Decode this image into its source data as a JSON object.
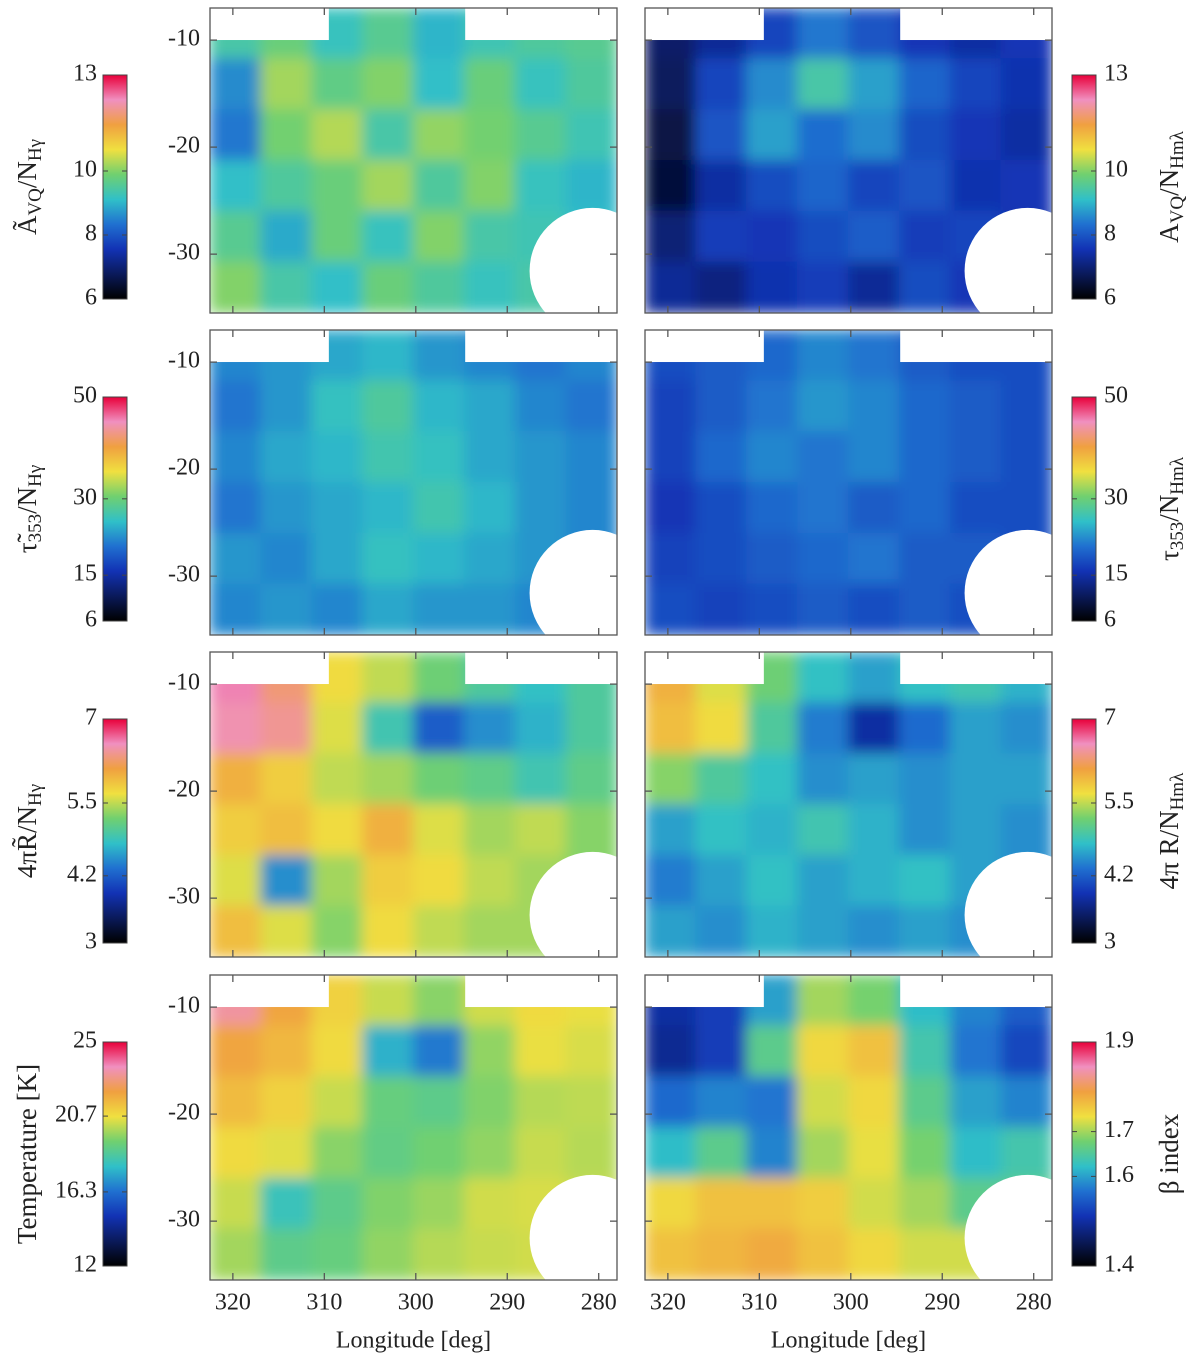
{
  "colormap": [
    "#000000",
    "#0a1a5a",
    "#1232b4",
    "#2070d0",
    "#30c0c8",
    "#70d070",
    "#f0e040",
    "#f0a040",
    "#f090c0",
    "#e8003a"
  ],
  "chart_data": [
    {
      "type": "heatmap",
      "xlim": [
        322.5,
        278
      ],
      "ylim": [
        -35.5,
        -7
      ],
      "xticks": [
        320,
        310,
        300,
        290,
        280
      ],
      "yticks": [
        -10,
        -20,
        -30
      ],
      "xtick_labels": false,
      "ytick_labels": true,
      "values": [
        [
          9.4,
          9.8,
          9.2,
          9.6,
          9.0,
          9.3,
          9.5,
          9.6
        ],
        [
          8.6,
          10.2,
          9.7,
          10.0,
          9.1,
          9.8,
          9.2,
          9.5
        ],
        [
          8.4,
          9.9,
          10.3,
          9.4,
          10.1,
          9.9,
          9.6,
          9.3
        ],
        [
          9.1,
          9.5,
          9.8,
          10.2,
          9.5,
          10.0,
          9.2,
          9.0
        ],
        [
          9.6,
          8.9,
          9.8,
          9.2,
          10.0,
          9.4,
          9.3,
          9.1
        ],
        [
          10.0,
          9.4,
          9.1,
          9.8,
          9.5,
          9.2,
          9.4,
          9.3
        ]
      ],
      "clim": [
        6,
        13
      ],
      "colorbar_ticks": [
        6,
        8,
        10,
        13
      ],
      "colorbar_side": "left",
      "colorbar_label": [
        "Ã",
        "VQ",
        "/N",
        "Hγ"
      ]
    },
    {
      "type": "heatmap",
      "xlim": [
        322.5,
        278
      ],
      "ylim": [
        -35.5,
        -7
      ],
      "xticks": [
        320,
        310,
        300,
        290,
        280
      ],
      "yticks": [
        -10,
        -20,
        -30
      ],
      "xtick_labels": false,
      "ytick_labels": false,
      "values": [
        [
          6.9,
          7.3,
          7.8,
          8.4,
          8.0,
          7.6,
          7.4,
          7.6
        ],
        [
          6.8,
          7.8,
          8.6,
          9.4,
          8.8,
          8.2,
          7.8,
          7.5
        ],
        [
          6.6,
          8.0,
          8.8,
          8.3,
          8.6,
          7.9,
          7.6,
          7.4
        ],
        [
          6.5,
          7.4,
          7.9,
          8.2,
          7.8,
          8.0,
          7.5,
          7.6
        ],
        [
          7.0,
          7.7,
          7.6,
          7.9,
          8.1,
          7.7,
          7.8,
          7.5
        ],
        [
          7.3,
          7.1,
          7.5,
          7.7,
          7.3,
          7.9,
          7.6,
          7.5
        ]
      ],
      "clim": [
        6,
        13
      ],
      "colorbar_ticks": [
        6,
        8,
        10,
        13
      ],
      "colorbar_side": "right",
      "colorbar_label": [
        "A",
        "VQ",
        "/N",
        "Hmλ"
      ]
    },
    {
      "type": "heatmap",
      "xlim": [
        322.5,
        278
      ],
      "ylim": [
        -35.5,
        -7
      ],
      "xticks": [
        320,
        310,
        300,
        290,
        280
      ],
      "yticks": [
        -10,
        -20,
        -30
      ],
      "xtick_labels": false,
      "ytick_labels": true,
      "values": [
        [
          22,
          23,
          24,
          25,
          23,
          22,
          21,
          22
        ],
        [
          21,
          23,
          26,
          28,
          25,
          24,
          22,
          21
        ],
        [
          22,
          24,
          25,
          27,
          26,
          24,
          23,
          22
        ],
        [
          21,
          23,
          24,
          25,
          27,
          25,
          23,
          22
        ],
        [
          23,
          22,
          24,
          26,
          25,
          24,
          23,
          22
        ],
        [
          22,
          23,
          22,
          24,
          23,
          23,
          22,
          22
        ]
      ],
      "clim": [
        6,
        50
      ],
      "colorbar_ticks": [
        6,
        15,
        30,
        50
      ],
      "colorbar_side": "left",
      "colorbar_label": [
        "τ̃",
        "353",
        "/N",
        "Hγ"
      ]
    },
    {
      "type": "heatmap",
      "xlim": [
        322.5,
        278
      ],
      "ylim": [
        -35.5,
        -7
      ],
      "xticks": [
        320,
        310,
        300,
        290,
        280
      ],
      "yticks": [
        -10,
        -20,
        -30
      ],
      "xtick_labels": false,
      "ytick_labels": false,
      "values": [
        [
          18,
          19,
          20,
          22,
          21,
          19,
          18,
          18
        ],
        [
          17,
          19,
          21,
          23,
          22,
          20,
          19,
          18
        ],
        [
          17,
          20,
          22,
          21,
          22,
          20,
          19,
          18
        ],
        [
          16,
          18,
          20,
          21,
          19,
          20,
          18,
          18
        ],
        [
          17,
          18,
          19,
          20,
          21,
          19,
          19,
          18
        ],
        [
          18,
          17,
          18,
          19,
          18,
          19,
          18,
          18
        ]
      ],
      "clim": [
        6,
        50
      ],
      "colorbar_ticks": [
        6,
        15,
        30,
        50
      ],
      "colorbar_side": "right",
      "colorbar_label": [
        "τ",
        "353",
        "/N",
        "Hmλ"
      ]
    },
    {
      "type": "heatmap",
      "xlim": [
        322.5,
        278
      ],
      "ylim": [
        -35.5,
        -7
      ],
      "xticks": [
        320,
        310,
        300,
        290,
        280
      ],
      "yticks": [
        -10,
        -20,
        -30
      ],
      "xtick_labels": false,
      "ytick_labels": true,
      "values": [
        [
          6.6,
          6.3,
          5.7,
          5.5,
          5.2,
          5.0,
          4.8,
          5.0
        ],
        [
          6.5,
          6.4,
          5.6,
          4.9,
          4.2,
          4.5,
          4.7,
          5.0
        ],
        [
          6.0,
          5.8,
          5.5,
          5.4,
          5.2,
          5.1,
          4.9,
          5.1
        ],
        [
          5.8,
          5.9,
          5.7,
          6.0,
          5.6,
          5.4,
          5.5,
          5.3
        ],
        [
          5.6,
          4.5,
          5.4,
          5.8,
          5.7,
          5.5,
          5.4,
          5.3
        ],
        [
          5.9,
          5.6,
          5.3,
          5.7,
          5.5,
          5.4,
          5.4,
          5.3
        ]
      ],
      "clim": [
        3,
        7
      ],
      "colorbar_ticks": [
        3,
        4.2,
        5.5,
        7
      ],
      "colorbar_side": "left",
      "colorbar_label": [
        "4πR̃/N",
        "Hγ"
      ]
    },
    {
      "type": "heatmap",
      "xlim": [
        322.5,
        278
      ],
      "ylim": [
        -35.5,
        -7
      ],
      "xticks": [
        320,
        310,
        300,
        290,
        280
      ],
      "yticks": [
        -10,
        -20,
        -30
      ],
      "xtick_labels": false,
      "ytick_labels": false,
      "values": [
        [
          6.0,
          5.6,
          5.2,
          4.8,
          4.6,
          4.8,
          4.9,
          4.7
        ],
        [
          5.9,
          5.7,
          5.0,
          4.4,
          3.8,
          4.3,
          4.6,
          4.5
        ],
        [
          5.3,
          5.0,
          4.8,
          4.5,
          4.6,
          4.5,
          4.6,
          4.6
        ],
        [
          4.6,
          4.8,
          4.7,
          4.9,
          4.7,
          4.5,
          4.6,
          4.5
        ],
        [
          4.4,
          4.6,
          4.8,
          4.6,
          4.7,
          4.8,
          4.6,
          4.5
        ],
        [
          4.6,
          4.5,
          4.7,
          4.6,
          4.5,
          4.6,
          4.5,
          4.5
        ]
      ],
      "clim": [
        3,
        7
      ],
      "colorbar_ticks": [
        3,
        4.2,
        5.5,
        7
      ],
      "colorbar_side": "right",
      "colorbar_label": [
        "4π R/N",
        "Hmλ"
      ]
    },
    {
      "type": "heatmap",
      "xlim": [
        322.5,
        278
      ],
      "ylim": [
        -35.5,
        -7
      ],
      "xticks": [
        320,
        310,
        300,
        290,
        280
      ],
      "yticks": [
        -10,
        -20,
        -30
      ],
      "xtick_labels": true,
      "ytick_labels": true,
      "xlabel": "Longitude [deg]",
      "values": [
        [
          23.2,
          22.0,
          21.0,
          20.2,
          19.5,
          20.3,
          20.8,
          20.6
        ],
        [
          22.0,
          21.6,
          20.8,
          17.5,
          16.5,
          19.6,
          20.6,
          20.4
        ],
        [
          21.5,
          21.0,
          20.2,
          19.0,
          18.8,
          19.4,
          20.0,
          20.1
        ],
        [
          20.8,
          20.5,
          19.5,
          18.9,
          19.2,
          19.6,
          20.2,
          20.0
        ],
        [
          20.2,
          18.0,
          18.8,
          19.4,
          19.7,
          20.3,
          20.4,
          20.2
        ],
        [
          19.8,
          18.8,
          19.0,
          19.6,
          20.0,
          20.2,
          20.3,
          20.2
        ]
      ],
      "clim": [
        12,
        25
      ],
      "colorbar_ticks": [
        12,
        16.3,
        20.7,
        25
      ],
      "colorbar_side": "left",
      "colorbar_label": [
        "Temperature [K]"
      ]
    },
    {
      "type": "heatmap",
      "xlim": [
        322.5,
        278
      ],
      "ylim": [
        -35.5,
        -7
      ],
      "xticks": [
        320,
        310,
        300,
        290,
        280
      ],
      "yticks": [
        -10,
        -20,
        -30
      ],
      "xtick_labels": true,
      "ytick_labels": false,
      "xlabel": "Longitude [deg]",
      "values": [
        [
          1.5,
          1.52,
          1.6,
          1.7,
          1.68,
          1.62,
          1.58,
          1.55
        ],
        [
          1.49,
          1.52,
          1.66,
          1.74,
          1.76,
          1.64,
          1.57,
          1.53
        ],
        [
          1.56,
          1.58,
          1.57,
          1.72,
          1.74,
          1.66,
          1.6,
          1.58
        ],
        [
          1.62,
          1.66,
          1.58,
          1.7,
          1.73,
          1.68,
          1.62,
          1.64
        ],
        [
          1.74,
          1.76,
          1.76,
          1.75,
          1.72,
          1.7,
          1.66,
          1.66
        ],
        [
          1.76,
          1.77,
          1.78,
          1.76,
          1.74,
          1.72,
          1.72,
          1.7
        ]
      ],
      "clim": [
        1.4,
        1.9
      ],
      "colorbar_ticks": [
        1.4,
        1.6,
        1.7,
        1.9
      ],
      "colorbar_side": "right",
      "colorbar_label": [
        "β index"
      ]
    }
  ]
}
